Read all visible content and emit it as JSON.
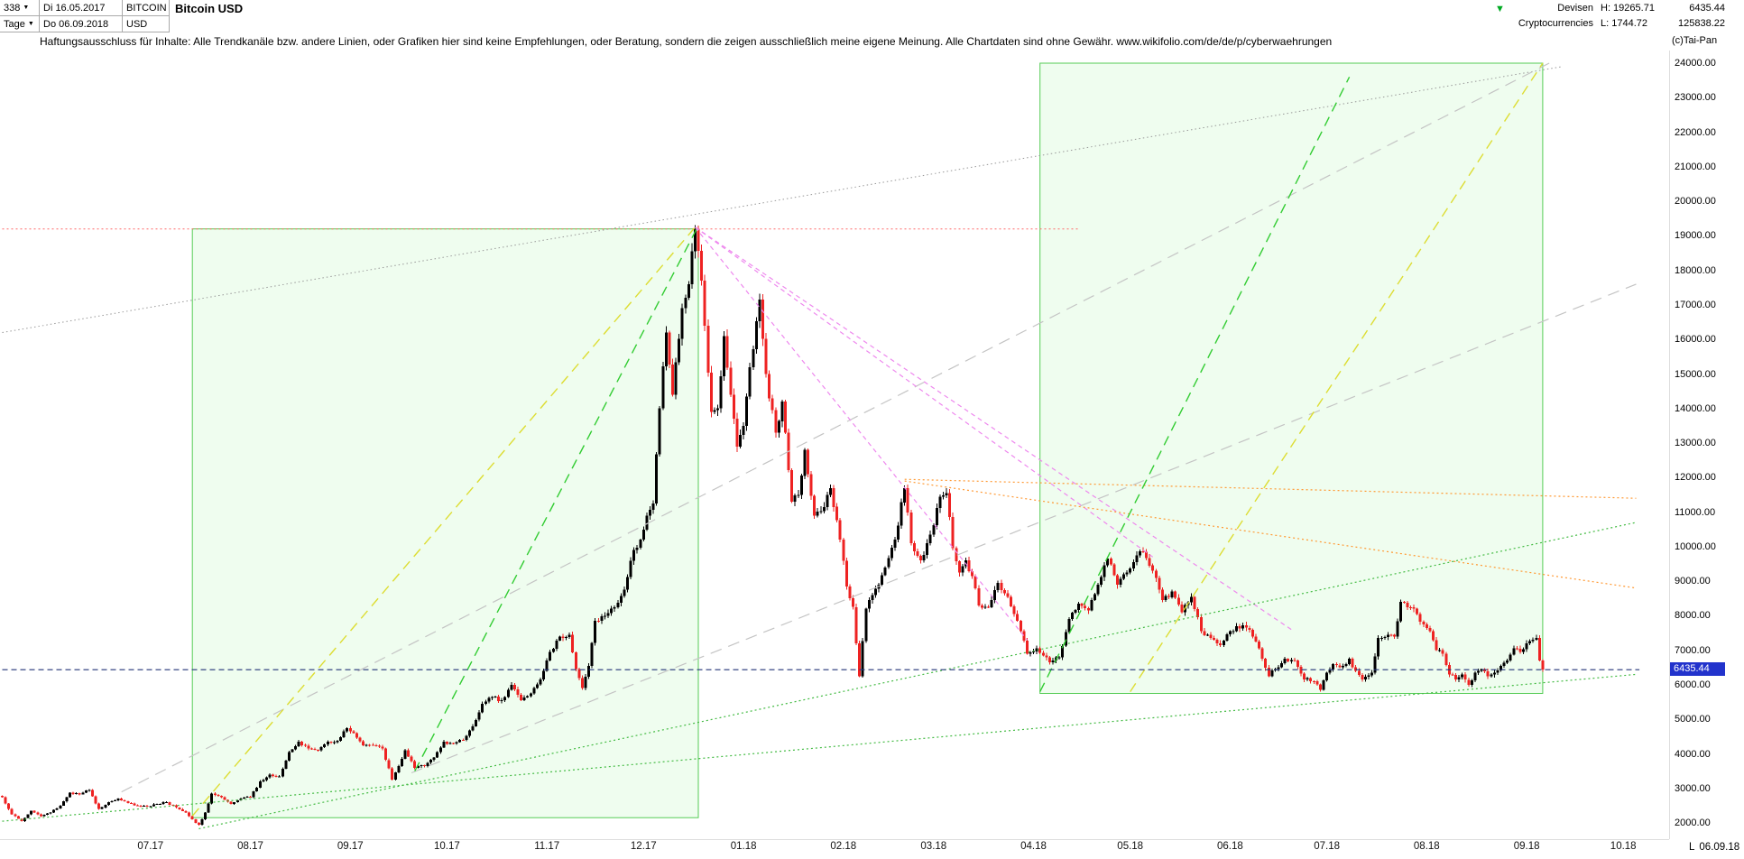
{
  "topbar": {
    "bars_count": "338",
    "caret": "▼",
    "period": "Tage",
    "date_from": "Di 16.05.2017",
    "date_to": "Do 06.09.2018",
    "symbol_line1": "BITCOIN",
    "symbol_line2": "USD",
    "title": "Bitcoin USD",
    "market_line1": "Devisen",
    "market_line2": "Cryptocurrencies",
    "high": "H: 19265.71",
    "low": "L: 1744.72",
    "last": "6435.44",
    "cumulative": "125838.22",
    "trend_arrow": "▼"
  },
  "disclaimer": "Haftungsausschluss für Inhalte: Alle Trendkanäle bzw. andere Linien, oder Grafiken hier sind keine Empfehlungen, oder Beratung, sondern die zeigen ausschließlich meine eigene Meinung. Alle Chartdaten sind ohne Gewähr.  www.wikifolio.com/de/de/p/cyberwaehrungen",
  "copyright": "(c)Tai-Pan",
  "bottom_right": {
    "last_marker": "L",
    "last_date": "06.09.18"
  },
  "chart_data": {
    "type": "candlestick",
    "title": "Bitcoin USD",
    "period": "daily",
    "x_start": "2017-05-16",
    "x_end": "2018-09-06",
    "y_min": 2000,
    "y_max": 24000,
    "y_step": 1000,
    "x_ticks": [
      "07.17",
      "08.17",
      "09.17",
      "10.17",
      "11.17",
      "12.17",
      "01.18",
      "02.18",
      "03.18",
      "04.18",
      "05.18",
      "06.18",
      "07.18",
      "08.18",
      "09.18",
      "10.18"
    ],
    "high": 19265.71,
    "low": 1744.72,
    "last": 6435.44,
    "last_label": "6435.44",
    "colors": {
      "up": "#000000",
      "down": "#ee2222",
      "box_fill": "rgba(130,240,130,0.13)",
      "box_stroke": "#55cc55",
      "last_line": "#223377",
      "last_tag_bg": "#2233cc"
    },
    "anchors": [
      [
        "2017-05-16",
        2750
      ],
      [
        "2017-05-19",
        2250
      ],
      [
        "2017-05-22",
        2050
      ],
      [
        "2017-05-25",
        2350
      ],
      [
        "2017-05-28",
        2200
      ],
      [
        "2017-05-31",
        2300
      ],
      [
        "2017-06-03",
        2500
      ],
      [
        "2017-06-06",
        2870
      ],
      [
        "2017-06-09",
        2830
      ],
      [
        "2017-06-12",
        2950
      ],
      [
        "2017-06-15",
        2400
      ],
      [
        "2017-06-18",
        2600
      ],
      [
        "2017-06-21",
        2700
      ],
      [
        "2017-06-24",
        2580
      ],
      [
        "2017-06-27",
        2500
      ],
      [
        "2017-06-30",
        2480
      ],
      [
        "2017-07-03",
        2550
      ],
      [
        "2017-07-06",
        2600
      ],
      [
        "2017-07-09",
        2450
      ],
      [
        "2017-07-12",
        2300
      ],
      [
        "2017-07-14",
        2100
      ],
      [
        "2017-07-16",
        1950
      ],
      [
        "2017-07-18",
        2300
      ],
      [
        "2017-07-20",
        2850
      ],
      [
        "2017-07-23",
        2750
      ],
      [
        "2017-07-26",
        2550
      ],
      [
        "2017-07-29",
        2700
      ],
      [
        "2017-08-01",
        2750
      ],
      [
        "2017-08-04",
        3200
      ],
      [
        "2017-08-07",
        3400
      ],
      [
        "2017-08-10",
        3350
      ],
      [
        "2017-08-13",
        4050
      ],
      [
        "2017-08-16",
        4350
      ],
      [
        "2017-08-19",
        4150
      ],
      [
        "2017-08-22",
        4100
      ],
      [
        "2017-08-25",
        4350
      ],
      [
        "2017-08-28",
        4380
      ],
      [
        "2017-08-31",
        4750
      ],
      [
        "2017-09-02",
        4600
      ],
      [
        "2017-09-05",
        4250
      ],
      [
        "2017-09-08",
        4250
      ],
      [
        "2017-09-11",
        4150
      ],
      [
        "2017-09-14",
        3250
      ],
      [
        "2017-09-16",
        3650
      ],
      [
        "2017-09-18",
        4100
      ],
      [
        "2017-09-21",
        3600
      ],
      [
        "2017-09-24",
        3650
      ],
      [
        "2017-09-27",
        3900
      ],
      [
        "2017-09-30",
        4350
      ],
      [
        "2017-10-03",
        4300
      ],
      [
        "2017-10-06",
        4400
      ],
      [
        "2017-10-09",
        4800
      ],
      [
        "2017-10-12",
        5450
      ],
      [
        "2017-10-15",
        5650
      ],
      [
        "2017-10-18",
        5550
      ],
      [
        "2017-10-21",
        6000
      ],
      [
        "2017-10-24",
        5550
      ],
      [
        "2017-10-27",
        5750
      ],
      [
        "2017-10-30",
        6150
      ],
      [
        "2017-11-02",
        6950
      ],
      [
        "2017-11-05",
        7400
      ],
      [
        "2017-11-08",
        7450
      ],
      [
        "2017-11-10",
        6450
      ],
      [
        "2017-11-12",
        5900
      ],
      [
        "2017-11-14",
        6550
      ],
      [
        "2017-11-16",
        7850
      ],
      [
        "2017-11-19",
        8000
      ],
      [
        "2017-11-22",
        8250
      ],
      [
        "2017-11-25",
        8750
      ],
      [
        "2017-11-28",
        9900
      ],
      [
        "2017-11-30",
        10200
      ],
      [
        "2017-12-02",
        10900
      ],
      [
        "2017-12-04",
        11250
      ],
      [
        "2017-12-06",
        14000
      ],
      [
        "2017-12-08",
        16200
      ],
      [
        "2017-12-10",
        14400
      ],
      [
        "2017-12-13",
        16900
      ],
      [
        "2017-12-15",
        17600
      ],
      [
        "2017-12-17",
        19200
      ],
      [
        "2017-12-19",
        17700
      ],
      [
        "2017-12-22",
        13900
      ],
      [
        "2017-12-24",
        14000
      ],
      [
        "2017-12-26",
        16100
      ],
      [
        "2017-12-28",
        14400
      ],
      [
        "2017-12-30",
        12900
      ],
      [
        "2018-01-01",
        13500
      ],
      [
        "2018-01-03",
        15200
      ],
      [
        "2018-01-06",
        17150
      ],
      [
        "2018-01-08",
        15000
      ],
      [
        "2018-01-11",
        13300
      ],
      [
        "2018-01-13",
        14200
      ],
      [
        "2018-01-16",
        11300
      ],
      [
        "2018-01-18",
        11500
      ],
      [
        "2018-01-20",
        12800
      ],
      [
        "2018-01-23",
        10900
      ],
      [
        "2018-01-26",
        11150
      ],
      [
        "2018-01-28",
        11700
      ],
      [
        "2018-01-31",
        10200
      ],
      [
        "2018-02-02",
        8850
      ],
      [
        "2018-02-04",
        8250
      ],
      [
        "2018-02-06",
        6250
      ],
      [
        "2018-02-08",
        8200
      ],
      [
        "2018-02-10",
        8600
      ],
      [
        "2018-02-12",
        8900
      ],
      [
        "2018-02-14",
        9400
      ],
      [
        "2018-02-17",
        10200
      ],
      [
        "2018-02-20",
        11700
      ],
      [
        "2018-02-22",
        10100
      ],
      [
        "2018-02-25",
        9600
      ],
      [
        "2018-02-28",
        10350
      ],
      [
        "2018-03-03",
        11450
      ],
      [
        "2018-03-05",
        11550
      ],
      [
        "2018-03-07",
        9950
      ],
      [
        "2018-03-09",
        9250
      ],
      [
        "2018-03-11",
        9600
      ],
      [
        "2018-03-13",
        9150
      ],
      [
        "2018-03-15",
        8300
      ],
      [
        "2018-03-18",
        8250
      ],
      [
        "2018-03-21",
        8950
      ],
      [
        "2018-03-24",
        8550
      ],
      [
        "2018-03-27",
        7850
      ],
      [
        "2018-03-30",
        6900
      ],
      [
        "2018-04-02",
        7050
      ],
      [
        "2018-04-04",
        6850
      ],
      [
        "2018-04-06",
        6650
      ],
      [
        "2018-04-09",
        6800
      ],
      [
        "2018-04-12",
        7900
      ],
      [
        "2018-04-15",
        8350
      ],
      [
        "2018-04-18",
        8150
      ],
      [
        "2018-04-21",
        8900
      ],
      [
        "2018-04-24",
        9650
      ],
      [
        "2018-04-27",
        8900
      ],
      [
        "2018-04-30",
        9250
      ],
      [
        "2018-05-03",
        9750
      ],
      [
        "2018-05-05",
        9850
      ],
      [
        "2018-05-08",
        9300
      ],
      [
        "2018-05-11",
        8450
      ],
      [
        "2018-05-14",
        8700
      ],
      [
        "2018-05-17",
        8100
      ],
      [
        "2018-05-20",
        8550
      ],
      [
        "2018-05-23",
        7550
      ],
      [
        "2018-05-26",
        7350
      ],
      [
        "2018-05-29",
        7150
      ],
      [
        "2018-06-01",
        7550
      ],
      [
        "2018-06-03",
        7700
      ],
      [
        "2018-06-06",
        7650
      ],
      [
        "2018-06-09",
        7250
      ],
      [
        "2018-06-11",
        6750
      ],
      [
        "2018-06-13",
        6250
      ],
      [
        "2018-06-15",
        6450
      ],
      [
        "2018-06-18",
        6750
      ],
      [
        "2018-06-21",
        6700
      ],
      [
        "2018-06-24",
        6150
      ],
      [
        "2018-06-27",
        6100
      ],
      [
        "2018-06-29",
        5850
      ],
      [
        "2018-07-01",
        6350
      ],
      [
        "2018-07-03",
        6600
      ],
      [
        "2018-07-06",
        6550
      ],
      [
        "2018-07-08",
        6750
      ],
      [
        "2018-07-10",
        6400
      ],
      [
        "2018-07-12",
        6150
      ],
      [
        "2018-07-15",
        6350
      ],
      [
        "2018-07-17",
        7350
      ],
      [
        "2018-07-20",
        7450
      ],
      [
        "2018-07-22",
        7400
      ],
      [
        "2018-07-24",
        8400
      ],
      [
        "2018-07-26",
        8250
      ],
      [
        "2018-07-28",
        8200
      ],
      [
        "2018-07-31",
        7750
      ],
      [
        "2018-08-02",
        7550
      ],
      [
        "2018-08-04",
        7000
      ],
      [
        "2018-08-06",
        6900
      ],
      [
        "2018-08-08",
        6300
      ],
      [
        "2018-08-10",
        6150
      ],
      [
        "2018-08-12",
        6300
      ],
      [
        "2018-08-14",
        6000
      ],
      [
        "2018-08-16",
        6350
      ],
      [
        "2018-08-18",
        6450
      ],
      [
        "2018-08-20",
        6250
      ],
      [
        "2018-08-22",
        6350
      ],
      [
        "2018-08-24",
        6550
      ],
      [
        "2018-08-26",
        6700
      ],
      [
        "2018-08-28",
        7050
      ],
      [
        "2018-08-30",
        6950
      ],
      [
        "2018-09-01",
        7200
      ],
      [
        "2018-09-03",
        7300
      ],
      [
        "2018-09-04",
        7350
      ],
      [
        "2018-09-05",
        6700
      ],
      [
        "2018-09-06",
        6435.44
      ]
    ],
    "overlays": [
      {
        "name": "rally-box-2017",
        "type": "box",
        "from": [
          "2017-07-14",
          2150
        ],
        "to": [
          "2017-12-18",
          19200
        ]
      },
      {
        "name": "consolidation-box-2018",
        "type": "box",
        "from": [
          "2018-04-03",
          5750
        ],
        "to": [
          "2018-09-06",
          24000
        ]
      },
      {
        "name": "resistance-dotted-red",
        "type": "line",
        "from": [
          "2017-05-16",
          19200
        ],
        "to": [
          "2018-04-15",
          19200
        ],
        "stroke": "#ff6666",
        "dash": "2 3",
        "width": 1
      },
      {
        "name": "longterm-dotted-gray",
        "type": "line",
        "from": [
          "2017-05-16",
          16200
        ],
        "to": [
          "2018-09-12",
          23900
        ],
        "stroke": "#999999",
        "dash": "1.5 3",
        "width": 1
      },
      {
        "name": "gray-dashed-trend-1",
        "type": "line",
        "from": [
          "2017-06-22",
          2900
        ],
        "to": [
          "2018-09-08",
          24000
        ],
        "stroke": "#c4c4c4",
        "dash": "13 8",
        "width": 1.2
      },
      {
        "name": "gray-dashed-trend-2",
        "type": "line",
        "from": [
          "2017-09-20",
          3450
        ],
        "to": [
          "2018-10-05",
          17600
        ],
        "stroke": "#c4c4c4",
        "dash": "13 8",
        "width": 1.2
      },
      {
        "name": "rally-line-yellow-2017",
        "type": "line",
        "from": [
          "2017-07-14",
          2200
        ],
        "to": [
          "2017-12-17",
          19250
        ],
        "stroke": "#dddd33",
        "dash": "11 7",
        "width": 1.4
      },
      {
        "name": "rally-line-green-2017",
        "type": "line",
        "from": [
          "2017-09-21",
          3500
        ],
        "to": [
          "2017-12-18",
          19300
        ],
        "stroke": "#33cc33",
        "dash": "11 7",
        "width": 1.4
      },
      {
        "name": "fan-line-pink-1",
        "type": "line",
        "from": [
          "2017-12-17",
          19250
        ],
        "to": [
          "2018-03-30",
          7300
        ],
        "stroke": "#ee88ee",
        "dash": "5 4",
        "width": 1.2
      },
      {
        "name": "fan-line-pink-2",
        "type": "line",
        "from": [
          "2017-12-17",
          19250
        ],
        "to": [
          "2018-05-08",
          9700
        ],
        "stroke": "#ee88ee",
        "dash": "5 4",
        "width": 1.2
      },
      {
        "name": "fan-line-pink-3",
        "type": "line",
        "from": [
          "2017-12-17",
          19250
        ],
        "to": [
          "2018-06-20",
          7600
        ],
        "stroke": "#ee88ee",
        "dash": "5 4",
        "width": 1.2
      },
      {
        "name": "resistance-orange-1",
        "type": "line",
        "from": [
          "2018-02-20",
          11950
        ],
        "to": [
          "2018-10-05",
          11400
        ],
        "stroke": "#ff9933",
        "dash": "2 3",
        "width": 1.2
      },
      {
        "name": "resistance-orange-2",
        "type": "line",
        "from": [
          "2018-02-20",
          11900
        ],
        "to": [
          "2018-10-05",
          8800
        ],
        "stroke": "#ff9933",
        "dash": "2 3",
        "width": 1.2
      },
      {
        "name": "support-dotted-green-1",
        "type": "line",
        "from": [
          "2017-07-16",
          1830
        ],
        "to": [
          "2018-10-05",
          10700
        ],
        "stroke": "#44bb44",
        "dash": "2 3",
        "width": 1.2
      },
      {
        "name": "support-dotted-green-2",
        "type": "line",
        "from": [
          "2017-05-16",
          2050
        ],
        "to": [
          "2018-10-05",
          6300
        ],
        "stroke": "#44bb44",
        "dash": "2 3",
        "width": 1.2
      },
      {
        "name": "rally-line-green-2018",
        "type": "line",
        "from": [
          "2018-04-03",
          5800
        ],
        "to": [
          "2018-07-08",
          23600
        ],
        "stroke": "#33cc33",
        "dash": "11 7",
        "width": 1.4
      },
      {
        "name": "rally-line-yellow-2018",
        "type": "line",
        "from": [
          "2018-05-01",
          5800
        ],
        "to": [
          "2018-09-06",
          24000
        ],
        "stroke": "#dddd33",
        "dash": "11 7",
        "width": 1.4
      },
      {
        "name": "last-price-line",
        "type": "line",
        "from": [
          "2017-05-16",
          6435.44
        ],
        "to": [
          "2018-10-06",
          6435.44
        ],
        "stroke": "#223377",
        "dash": "6 4",
        "width": 1.2
      }
    ]
  }
}
